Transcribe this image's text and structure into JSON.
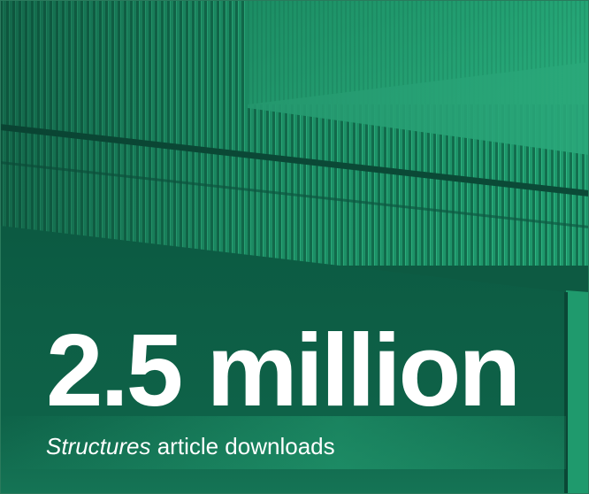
{
  "stat": {
    "value": "2.5 million",
    "caption_italic": "Structures",
    "caption_rest": " article downloads"
  },
  "colors": {
    "base": "#0d5a42",
    "light": "#26a678",
    "mid": "#1b8a63",
    "dark": "#0a4735",
    "text": "#ffffff"
  },
  "background": {
    "image": "green-tinted-ribbed-concrete-building-photo"
  }
}
